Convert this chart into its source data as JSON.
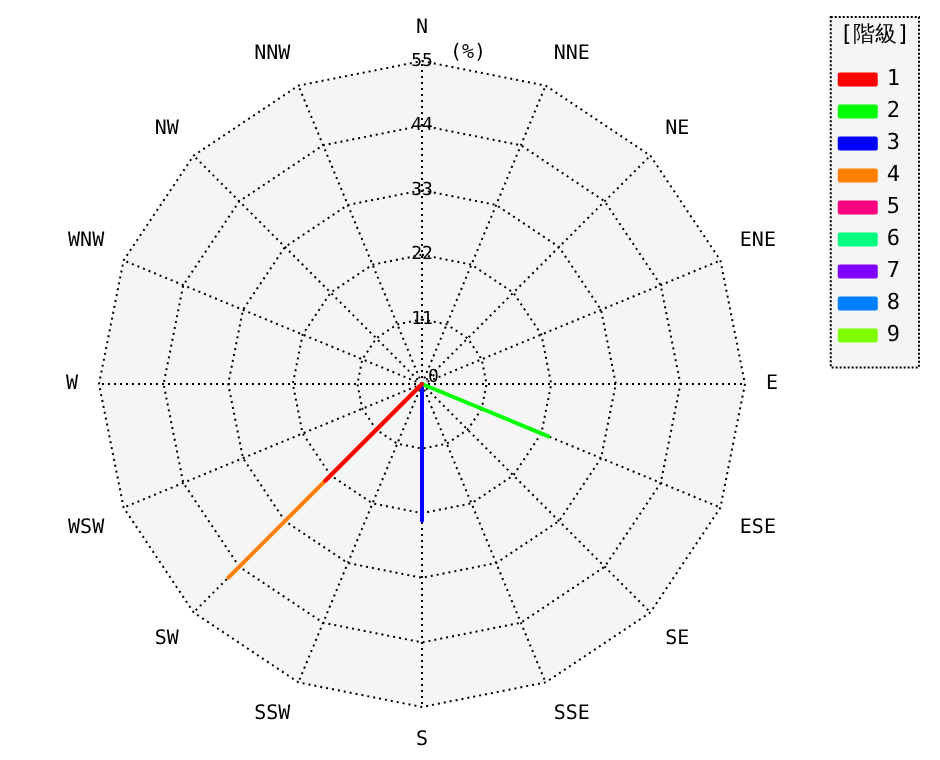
{
  "chart_data": {
    "type": "radar",
    "categories": [
      "N",
      "NNE",
      "NE",
      "ENE",
      "E",
      "ESE",
      "SE",
      "SSE",
      "S",
      "SSW",
      "SW",
      "WSW",
      "W",
      "WNW",
      "NW",
      "NNW"
    ],
    "ylabel": "(%)",
    "legend_title": "[階級]",
    "legend": "right",
    "ylim": [
      0,
      55
    ],
    "yticks": [
      0,
      11,
      22,
      33,
      44,
      55
    ],
    "grid": true,
    "series": [
      {
        "name": "1",
        "color": "#ff0000",
        "values": [
          0,
          0,
          0,
          0,
          0,
          0,
          0,
          0,
          0,
          0,
          23.3,
          0,
          0,
          0,
          0,
          0
        ]
      },
      {
        "name": "2",
        "color": "#00ff00",
        "values": [
          0,
          0,
          0,
          0,
          0,
          23.3,
          0,
          0,
          0,
          0,
          0,
          0,
          0,
          0,
          0,
          0
        ]
      },
      {
        "name": "3",
        "color": "#0000ff",
        "values": [
          0,
          0,
          0,
          0,
          0,
          0,
          0,
          0,
          23.3,
          0,
          0,
          0,
          0,
          0,
          0,
          0
        ]
      },
      {
        "name": "4",
        "color": "#ff8000",
        "values": [
          0,
          0,
          0,
          0,
          0,
          0,
          0,
          0,
          0,
          0,
          46.6,
          0,
          0,
          0,
          0,
          0
        ]
      },
      {
        "name": "5",
        "color": "#ff0080",
        "values": [
          null,
          null,
          null,
          null,
          null,
          null,
          null,
          null,
          null,
          null,
          null,
          null,
          null,
          null,
          null,
          null
        ]
      },
      {
        "name": "6",
        "color": "#00ff80",
        "values": [
          null,
          null,
          null,
          null,
          null,
          null,
          null,
          null,
          null,
          null,
          null,
          null,
          null,
          null,
          null,
          null
        ]
      },
      {
        "name": "7",
        "color": "#8000ff",
        "values": [
          null,
          null,
          null,
          null,
          null,
          null,
          null,
          null,
          null,
          null,
          null,
          null,
          null,
          null,
          null,
          null
        ]
      },
      {
        "name": "8",
        "color": "#0080ff",
        "values": [
          null,
          null,
          null,
          null,
          null,
          null,
          null,
          null,
          null,
          null,
          null,
          null,
          null,
          null,
          null,
          null
        ]
      },
      {
        "name": "9",
        "color": "#80ff00",
        "values": [
          null,
          null,
          null,
          null,
          null,
          null,
          null,
          null,
          null,
          null,
          null,
          null,
          null,
          null,
          null,
          null
        ]
      }
    ]
  }
}
